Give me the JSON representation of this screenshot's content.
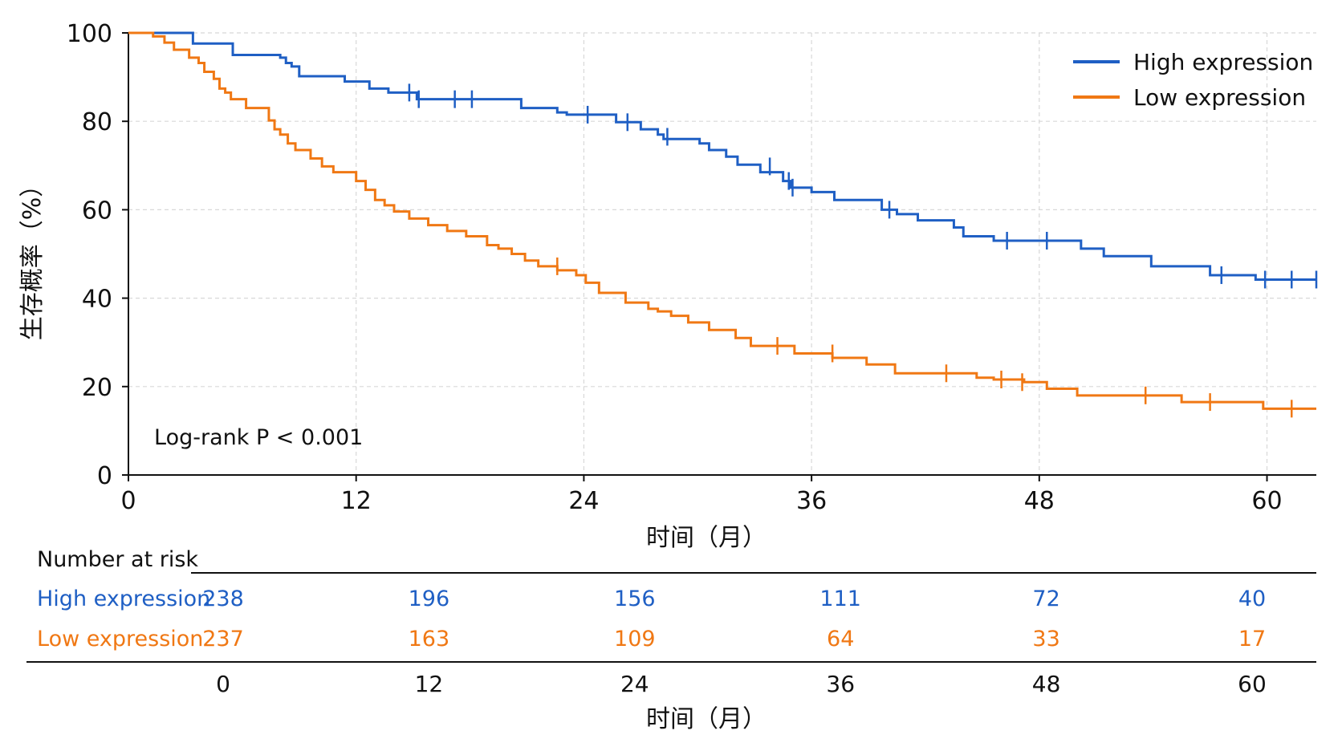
{
  "chart_data": {
    "type": "line",
    "subtype": "kaplan-meier",
    "xlabel": "时间（月）",
    "ylabel": "生存概率（%）",
    "xlim": [
      0,
      62.6
    ],
    "ylim": [
      0,
      100
    ],
    "xticks": [
      0,
      12,
      24,
      36,
      48,
      60
    ],
    "yticks": [
      0,
      20,
      40,
      60,
      80,
      100
    ],
    "grid": true,
    "legend_position": "top-right",
    "annotation": "Log-rank P < 0.001",
    "series": [
      {
        "name": "High expression",
        "color": "#1f5fc4",
        "steps": [
          [
            0,
            100
          ],
          [
            3.4,
            97.6
          ],
          [
            5.5,
            95.0
          ],
          [
            8.0,
            94.4
          ],
          [
            8.3,
            93.2
          ],
          [
            8.6,
            92.4
          ],
          [
            9.0,
            91.6
          ],
          [
            9.0,
            90.2
          ],
          [
            11.4,
            89.0
          ],
          [
            12.7,
            87.4
          ],
          [
            13.7,
            86.5
          ],
          [
            15.2,
            85.0
          ],
          [
            20.7,
            83.0
          ],
          [
            22.6,
            82.0
          ],
          [
            23.1,
            81.5
          ],
          [
            25.7,
            79.8
          ],
          [
            27.0,
            78.2
          ],
          [
            27.9,
            77.0
          ],
          [
            28.2,
            76.0
          ],
          [
            30.1,
            75.0
          ],
          [
            30.6,
            73.5
          ],
          [
            31.5,
            72.0
          ],
          [
            32.1,
            70.2
          ],
          [
            33.3,
            68.5
          ],
          [
            34.5,
            66.5
          ],
          [
            34.9,
            65.0
          ],
          [
            36.0,
            64.0
          ],
          [
            37.2,
            62.2
          ],
          [
            39.7,
            60.0
          ],
          [
            40.5,
            59.0
          ],
          [
            41.6,
            57.6
          ],
          [
            43.5,
            56.0
          ],
          [
            44.0,
            54.0
          ],
          [
            45.6,
            53.0
          ],
          [
            50.2,
            51.2
          ],
          [
            51.4,
            49.5
          ],
          [
            53.9,
            47.2
          ],
          [
            57.0,
            45.2
          ],
          [
            59.4,
            44.2
          ],
          [
            62.6,
            44.2
          ]
        ],
        "censored": [
          [
            14.8,
            86.5
          ],
          [
            15.3,
            85.0
          ],
          [
            17.2,
            85.0
          ],
          [
            18.1,
            85.0
          ],
          [
            24.2,
            81.5
          ],
          [
            26.3,
            79.8
          ],
          [
            28.4,
            76.5
          ],
          [
            33.8,
            69.8
          ],
          [
            34.8,
            66.5
          ],
          [
            35.0,
            65.0
          ],
          [
            40.1,
            60.0
          ],
          [
            46.3,
            53.0
          ],
          [
            48.4,
            53.0
          ],
          [
            57.6,
            45.2
          ],
          [
            59.9,
            44.2
          ],
          [
            61.3,
            44.2
          ],
          [
            62.6,
            44.2
          ]
        ]
      },
      {
        "name": "Low expression",
        "color": "#f07814",
        "steps": [
          [
            0,
            100
          ],
          [
            1.3,
            99.2
          ],
          [
            1.9,
            97.8
          ],
          [
            2.4,
            96.2
          ],
          [
            3.2,
            94.4
          ],
          [
            3.7,
            93.2
          ],
          [
            4.0,
            91.2
          ],
          [
            4.5,
            89.6
          ],
          [
            4.8,
            87.4
          ],
          [
            5.1,
            86.5
          ],
          [
            5.4,
            85.0
          ],
          [
            6.2,
            83.0
          ],
          [
            7.4,
            80.2
          ],
          [
            7.7,
            78.2
          ],
          [
            8.0,
            77.0
          ],
          [
            8.4,
            75.0
          ],
          [
            8.8,
            73.5
          ],
          [
            9.6,
            71.6
          ],
          [
            10.2,
            69.8
          ],
          [
            10.8,
            68.5
          ],
          [
            12.0,
            66.5
          ],
          [
            12.5,
            64.5
          ],
          [
            13.0,
            62.2
          ],
          [
            13.5,
            61.0
          ],
          [
            14.0,
            59.6
          ],
          [
            14.8,
            58.0
          ],
          [
            15.8,
            56.5
          ],
          [
            16.8,
            55.2
          ],
          [
            17.8,
            54.0
          ],
          [
            18.9,
            52.0
          ],
          [
            19.5,
            51.2
          ],
          [
            20.2,
            50.0
          ],
          [
            20.9,
            48.5
          ],
          [
            21.6,
            47.2
          ],
          [
            22.6,
            46.3
          ],
          [
            23.6,
            45.2
          ],
          [
            24.1,
            43.5
          ],
          [
            24.8,
            41.2
          ],
          [
            26.2,
            39.0
          ],
          [
            27.4,
            37.6
          ],
          [
            27.9,
            37.0
          ],
          [
            28.6,
            36.0
          ],
          [
            29.5,
            34.5
          ],
          [
            30.6,
            32.8
          ],
          [
            32.0,
            31.0
          ],
          [
            32.8,
            29.2
          ],
          [
            35.1,
            27.5
          ],
          [
            37.1,
            26.5
          ],
          [
            38.9,
            25.0
          ],
          [
            40.4,
            23.0
          ],
          [
            44.7,
            22.0
          ],
          [
            45.6,
            21.6
          ],
          [
            47.2,
            21.0
          ],
          [
            48.4,
            19.5
          ],
          [
            50.0,
            18.0
          ],
          [
            55.5,
            16.5
          ],
          [
            59.8,
            15.0
          ],
          [
            62.6,
            15.0
          ]
        ],
        "censored": [
          [
            22.6,
            47.2
          ],
          [
            34.2,
            29.2
          ],
          [
            37.1,
            27.5
          ],
          [
            43.1,
            23.0
          ],
          [
            46.0,
            21.6
          ],
          [
            47.1,
            21.0
          ],
          [
            53.6,
            18.0
          ],
          [
            57.0,
            16.5
          ],
          [
            61.3,
            15.0
          ]
        ]
      }
    ]
  },
  "risk_table": {
    "title": "Number at risk",
    "rows": [
      {
        "label": "High expression",
        "color": "#1f5fc4",
        "values": [
          "238",
          "196",
          "156",
          "111",
          "72",
          "40"
        ]
      },
      {
        "label": "Low expression",
        "color": "#f07814",
        "values": [
          "237",
          "163",
          "109",
          "64",
          "33",
          "17"
        ]
      }
    ],
    "times": [
      0,
      12,
      24,
      36,
      48,
      60
    ],
    "tick_labels": [
      "0",
      "12",
      "24",
      "36",
      "48",
      "60"
    ],
    "xlabel": "时间（月）"
  }
}
